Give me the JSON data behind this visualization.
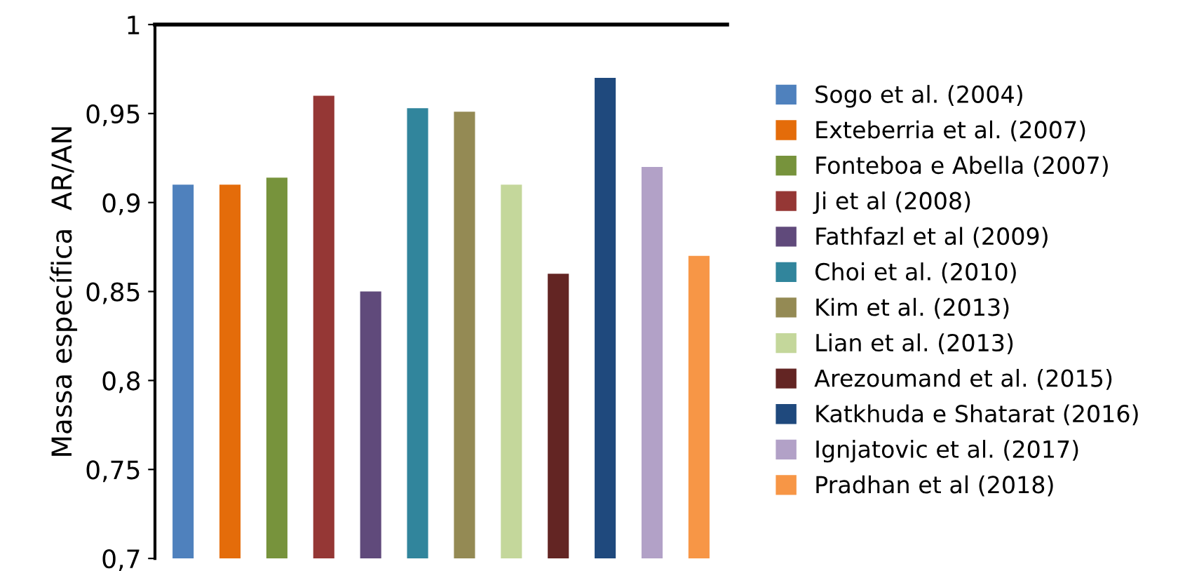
{
  "chart_data": {
    "type": "bar",
    "ylabel": "Massa específica  AR/AN",
    "categories": [
      null,
      null,
      null,
      null,
      null,
      null,
      null,
      null,
      null,
      null,
      null,
      null
    ],
    "series": [
      {
        "name": "Sogo et al. (2004)",
        "color": "#4f81bd",
        "values": [
          0.91,
          null,
          null,
          null,
          null,
          null,
          null,
          null,
          null,
          null,
          null,
          null
        ]
      },
      {
        "name": "Exteberria et al. (2007)",
        "color": "#e46c0a",
        "values": [
          null,
          0.91,
          null,
          null,
          null,
          null,
          null,
          null,
          null,
          null,
          null,
          null
        ]
      },
      {
        "name": "Fonteboa e Abella (2007)",
        "color": "#77933c",
        "values": [
          null,
          null,
          0.914,
          null,
          null,
          null,
          null,
          null,
          null,
          null,
          null,
          null
        ]
      },
      {
        "name": "Ji et al (2008)",
        "color": "#953735",
        "values": [
          null,
          null,
          null,
          0.96,
          null,
          null,
          null,
          null,
          null,
          null,
          null,
          null
        ]
      },
      {
        "name": "Fathfazl et al (2009)",
        "color": "#604a7b",
        "values": [
          null,
          null,
          null,
          null,
          0.85,
          null,
          null,
          null,
          null,
          null,
          null,
          null
        ]
      },
      {
        "name": "Choi et al. (2010)",
        "color": "#31859c",
        "values": [
          null,
          null,
          null,
          null,
          null,
          0.953,
          null,
          null,
          null,
          null,
          null,
          null
        ]
      },
      {
        "name": "Kim et al. (2013)",
        "color": "#948a54",
        "values": [
          null,
          null,
          null,
          null,
          null,
          null,
          0.951,
          null,
          null,
          null,
          null,
          null
        ]
      },
      {
        "name": "Lian et al. (2013)",
        "color": "#c4d79b",
        "values": [
          null,
          null,
          null,
          null,
          null,
          null,
          null,
          0.91,
          null,
          null,
          null,
          null
        ]
      },
      {
        "name": "Arezoumand et al. (2015)",
        "color": "#632523",
        "values": [
          null,
          null,
          null,
          null,
          null,
          null,
          null,
          null,
          0.86,
          null,
          null,
          null
        ]
      },
      {
        "name": "Katkhuda e Shatarat (2016)",
        "color": "#1f497d",
        "values": [
          null,
          null,
          null,
          null,
          null,
          null,
          null,
          null,
          null,
          0.97,
          null,
          null
        ]
      },
      {
        "name": "Ignjatovic et al. (2017)",
        "color": "#b2a1c7",
        "values": [
          null,
          null,
          null,
          null,
          null,
          null,
          null,
          null,
          null,
          null,
          0.92,
          null
        ]
      },
      {
        "name": "Pradhan et al (2018)",
        "color": "#f79646",
        "values": [
          null,
          null,
          null,
          null,
          null,
          null,
          null,
          null,
          null,
          null,
          null,
          0.87
        ]
      }
    ],
    "ylim": [
      0.7,
      1
    ],
    "yticks": [
      {
        "value": 0.7,
        "label": "0,7"
      },
      {
        "value": 0.75,
        "label": "0,75"
      },
      {
        "value": 0.8,
        "label": "0,8"
      },
      {
        "value": 0.85,
        "label": "0,85"
      },
      {
        "value": 0.9,
        "label": "0,9"
      },
      {
        "value": 0.95,
        "label": "0,95"
      },
      {
        "value": 1,
        "label": "1"
      }
    ],
    "grid": false,
    "legend": "right"
  }
}
